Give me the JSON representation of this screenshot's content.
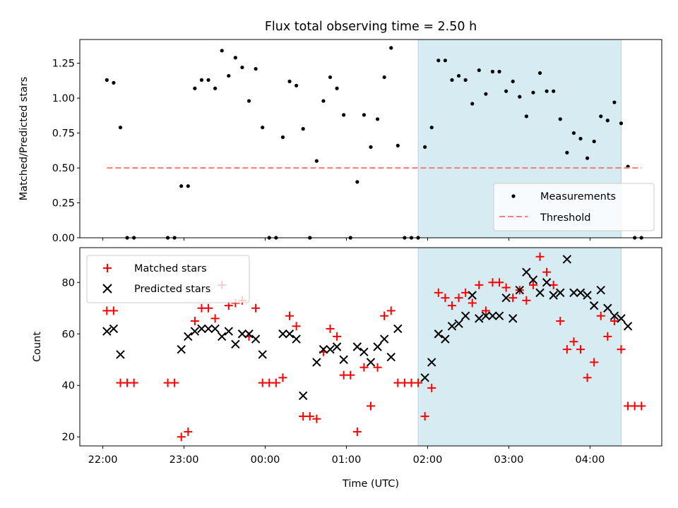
{
  "title": "Flux total observing time = 2.50 h",
  "colors": {
    "measurement": "#000000",
    "threshold": "#ff7f7f",
    "matched": "#ff0000",
    "predicted": "#000000",
    "shade": "#add8e6"
  },
  "chart_data": [
    {
      "type": "scatter",
      "ylabel": "Matched/Predicted stars",
      "ylim": [
        0,
        1.42
      ],
      "yticks": [
        0,
        0.25,
        0.5,
        0.75,
        1.0,
        1.25
      ],
      "yticklabels": [
        "0.00",
        "0.25",
        "0.50",
        "0.75",
        "1.00",
        "1.25"
      ],
      "xlim": [
        "21:43",
        "04:53"
      ],
      "xticks": [
        "22:00",
        "23:00",
        "00:00",
        "01:00",
        "02:00",
        "03:00",
        "04:00"
      ],
      "shaded_interval": [
        "01:53",
        "04:23"
      ],
      "legend_position": "lower-right",
      "series": [
        {
          "name": "Measurements",
          "marker": "dot",
          "points": [
            [
              "22:03",
              1.13
            ],
            [
              "22:08",
              1.11
            ],
            [
              "22:13",
              0.79
            ],
            [
              "22:18",
              0
            ],
            [
              "22:23",
              0
            ],
            [
              "22:48",
              0
            ],
            [
              "22:53",
              0
            ],
            [
              "22:58",
              0.37
            ],
            [
              "23:03",
              0.37
            ],
            [
              "23:08",
              1.07
            ],
            [
              "23:13",
              1.13
            ],
            [
              "23:18",
              1.13
            ],
            [
              "23:23",
              1.07
            ],
            [
              "23:28",
              1.34
            ],
            [
              "23:33",
              1.16
            ],
            [
              "23:38",
              1.29
            ],
            [
              "23:43",
              1.22
            ],
            [
              "23:48",
              0.98
            ],
            [
              "23:53",
              1.21
            ],
            [
              "23:58",
              0.79
            ],
            [
              "00:03",
              0
            ],
            [
              "00:08",
              0
            ],
            [
              "00:13",
              0.72
            ],
            [
              "00:18",
              1.12
            ],
            [
              "00:23",
              1.09
            ],
            [
              "00:28",
              0.78
            ],
            [
              "00:33",
              0
            ],
            [
              "00:38",
              0.55
            ],
            [
              "00:43",
              0.98
            ],
            [
              "00:48",
              1.15
            ],
            [
              "00:53",
              1.07
            ],
            [
              "00:58",
              0.88
            ],
            [
              "01:03",
              0
            ],
            [
              "01:08",
              0.4
            ],
            [
              "01:13",
              0.88
            ],
            [
              "01:18",
              0.65
            ],
            [
              "01:23",
              0.85
            ],
            [
              "01:28",
              1.15
            ],
            [
              "01:33",
              1.36
            ],
            [
              "01:38",
              0.66
            ],
            [
              "01:43",
              0
            ],
            [
              "01:48",
              0
            ],
            [
              "01:53",
              0
            ],
            [
              "01:58",
              0.65
            ],
            [
              "02:03",
              0.79
            ],
            [
              "02:08",
              1.27
            ],
            [
              "02:13",
              1.27
            ],
            [
              "02:18",
              1.13
            ],
            [
              "02:23",
              1.16
            ],
            [
              "02:28",
              1.13
            ],
            [
              "02:33",
              0.96
            ],
            [
              "02:38",
              1.2
            ],
            [
              "02:43",
              1.03
            ],
            [
              "02:48",
              1.19
            ],
            [
              "02:53",
              1.19
            ],
            [
              "02:58",
              1.05
            ],
            [
              "03:03",
              1.12
            ],
            [
              "03:08",
              1.01
            ],
            [
              "03:13",
              0.87
            ],
            [
              "03:18",
              1.04
            ],
            [
              "03:23",
              1.18
            ],
            [
              "03:28",
              1.05
            ],
            [
              "03:33",
              1.05
            ],
            [
              "03:38",
              0.85
            ],
            [
              "03:43",
              0.61
            ],
            [
              "03:48",
              0.75
            ],
            [
              "03:53",
              0.71
            ],
            [
              "03:58",
              0.57
            ],
            [
              "04:03",
              0.69
            ],
            [
              "04:08",
              0.87
            ],
            [
              "04:13",
              0.84
            ],
            [
              "04:18",
              0.97
            ],
            [
              "04:23",
              0.82
            ],
            [
              "04:28",
              0.51
            ],
            [
              "04:33",
              0
            ],
            [
              "04:38",
              0
            ]
          ]
        },
        {
          "name": "Threshold",
          "marker": "dashed-line",
          "points": [
            [
              "22:03",
              0.5
            ],
            [
              "04:38",
              0.5
            ]
          ]
        }
      ]
    },
    {
      "type": "scatter",
      "ylabel": "Count",
      "xlabel": "Time (UTC)",
      "ylim": [
        16.5,
        93.5
      ],
      "yticks": [
        20,
        40,
        60,
        80
      ],
      "yticklabels": [
        "20",
        "40",
        "60",
        "80"
      ],
      "xlim": [
        "21:43",
        "04:53"
      ],
      "xticks": [
        "22:00",
        "23:00",
        "00:00",
        "01:00",
        "02:00",
        "03:00",
        "04:00"
      ],
      "xticklabels": [
        "22:00",
        "23:00",
        "00:00",
        "01:00",
        "02:00",
        "03:00",
        "04:00"
      ],
      "shaded_interval": [
        "01:53",
        "04:23"
      ],
      "legend_position": "upper-left",
      "series": [
        {
          "name": "Matched stars",
          "marker": "plus",
          "points": [
            [
              "22:03",
              69
            ],
            [
              "22:08",
              69
            ],
            [
              "22:13",
              41
            ],
            [
              "22:18",
              41
            ],
            [
              "22:23",
              41
            ],
            [
              "22:48",
              41
            ],
            [
              "22:53",
              41
            ],
            [
              "22:58",
              20
            ],
            [
              "23:03",
              22
            ],
            [
              "23:08",
              65
            ],
            [
              "23:13",
              70
            ],
            [
              "23:18",
              70
            ],
            [
              "23:23",
              66
            ],
            [
              "23:28",
              79
            ],
            [
              "23:33",
              71
            ],
            [
              "23:38",
              72
            ],
            [
              "23:43",
              73
            ],
            [
              "23:48",
              59
            ],
            [
              "23:53",
              70
            ],
            [
              "23:58",
              41
            ],
            [
              "00:03",
              41
            ],
            [
              "00:08",
              41
            ],
            [
              "00:13",
              43
            ],
            [
              "00:18",
              67
            ],
            [
              "00:23",
              63
            ],
            [
              "00:28",
              28
            ],
            [
              "00:33",
              28
            ],
            [
              "00:38",
              27
            ],
            [
              "00:43",
              53
            ],
            [
              "00:48",
              62
            ],
            [
              "00:53",
              59
            ],
            [
              "00:58",
              44
            ],
            [
              "01:03",
              44
            ],
            [
              "01:08",
              22
            ],
            [
              "01:13",
              47
            ],
            [
              "01:18",
              32
            ],
            [
              "01:23",
              47
            ],
            [
              "01:28",
              67
            ],
            [
              "01:33",
              69
            ],
            [
              "01:38",
              41
            ],
            [
              "01:43",
              41
            ],
            [
              "01:48",
              41
            ],
            [
              "01:53",
              41
            ],
            [
              "01:58",
              28
            ],
            [
              "02:03",
              39
            ],
            [
              "02:08",
              76
            ],
            [
              "02:13",
              74
            ],
            [
              "02:18",
              71
            ],
            [
              "02:23",
              74
            ],
            [
              "02:28",
              76
            ],
            [
              "02:33",
              72
            ],
            [
              "02:38",
              79
            ],
            [
              "02:43",
              69
            ],
            [
              "02:48",
              80
            ],
            [
              "02:53",
              80
            ],
            [
              "02:58",
              78
            ],
            [
              "03:03",
              74
            ],
            [
              "03:08",
              77
            ],
            [
              "03:13",
              73
            ],
            [
              "03:18",
              79
            ],
            [
              "03:23",
              90
            ],
            [
              "03:28",
              84
            ],
            [
              "03:33",
              79
            ],
            [
              "03:38",
              65
            ],
            [
              "03:43",
              54
            ],
            [
              "03:48",
              57
            ],
            [
              "03:53",
              54
            ],
            [
              "03:58",
              43
            ],
            [
              "04:03",
              49
            ],
            [
              "04:08",
              67
            ],
            [
              "04:13",
              59
            ],
            [
              "04:18",
              65
            ],
            [
              "04:23",
              54
            ],
            [
              "04:28",
              32
            ],
            [
              "04:33",
              32
            ],
            [
              "04:38",
              32
            ]
          ]
        },
        {
          "name": "Predicted stars",
          "marker": "x",
          "points": [
            [
              "22:03",
              61
            ],
            [
              "22:08",
              62
            ],
            [
              "22:13",
              52
            ],
            [
              "22:58",
              54
            ],
            [
              "23:03",
              59
            ],
            [
              "23:08",
              61
            ],
            [
              "23:13",
              62
            ],
            [
              "23:18",
              62
            ],
            [
              "23:23",
              62
            ],
            [
              "23:28",
              59
            ],
            [
              "23:33",
              61
            ],
            [
              "23:38",
              56
            ],
            [
              "23:43",
              60
            ],
            [
              "23:48",
              60
            ],
            [
              "23:53",
              58
            ],
            [
              "23:58",
              52
            ],
            [
              "00:13",
              60
            ],
            [
              "00:18",
              60
            ],
            [
              "00:23",
              58
            ],
            [
              "00:28",
              36
            ],
            [
              "00:38",
              49
            ],
            [
              "00:43",
              54
            ],
            [
              "00:48",
              54
            ],
            [
              "00:53",
              55
            ],
            [
              "00:58",
              50
            ],
            [
              "01:08",
              55
            ],
            [
              "01:13",
              53
            ],
            [
              "01:18",
              49
            ],
            [
              "01:23",
              55
            ],
            [
              "01:28",
              58
            ],
            [
              "01:33",
              51
            ],
            [
              "01:38",
              62
            ],
            [
              "01:58",
              43
            ],
            [
              "02:03",
              49
            ],
            [
              "02:08",
              60
            ],
            [
              "02:13",
              58
            ],
            [
              "02:18",
              63
            ],
            [
              "02:23",
              64
            ],
            [
              "02:28",
              67
            ],
            [
              "02:33",
              75
            ],
            [
              "02:38",
              66
            ],
            [
              "02:43",
              67
            ],
            [
              "02:48",
              67
            ],
            [
              "02:53",
              67
            ],
            [
              "02:58",
              74
            ],
            [
              "03:03",
              66
            ],
            [
              "03:08",
              77
            ],
            [
              "03:13",
              84
            ],
            [
              "03:18",
              81
            ],
            [
              "03:23",
              76
            ],
            [
              "03:28",
              80
            ],
            [
              "03:33",
              75
            ],
            [
              "03:38",
              76
            ],
            [
              "03:43",
              89
            ],
            [
              "03:48",
              76
            ],
            [
              "03:53",
              76
            ],
            [
              "03:58",
              75
            ],
            [
              "04:03",
              71
            ],
            [
              "04:08",
              77
            ],
            [
              "04:13",
              70
            ],
            [
              "04:18",
              67
            ],
            [
              "04:23",
              66
            ],
            [
              "04:28",
              63
            ]
          ]
        }
      ]
    }
  ]
}
